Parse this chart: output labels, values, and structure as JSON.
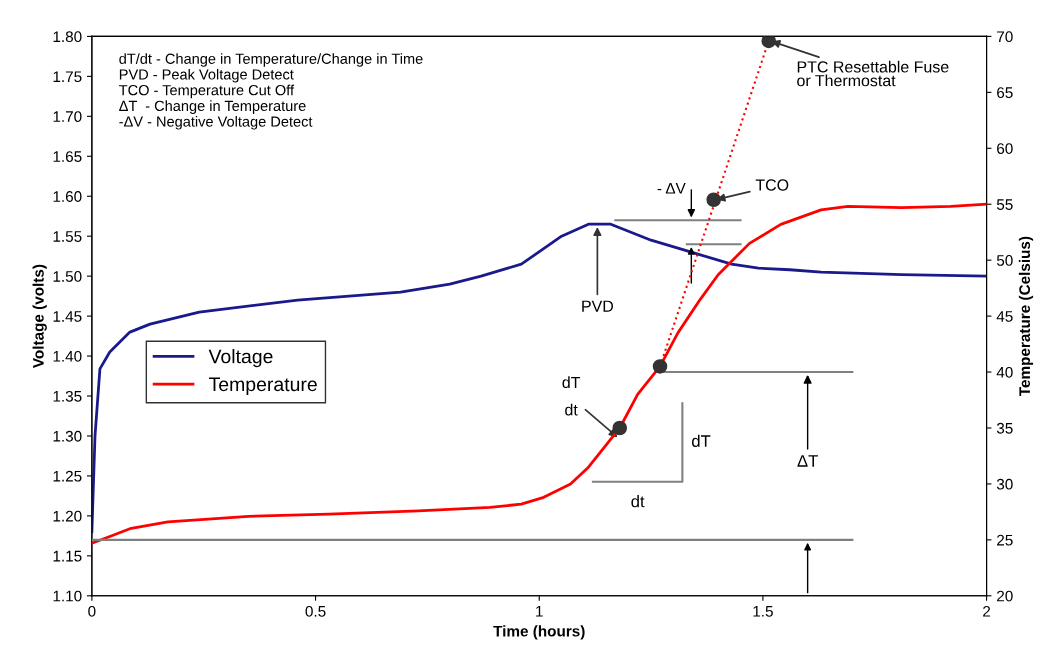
{
  "chart_data": {
    "type": "line",
    "xlabel": "Time (hours)",
    "ylabel": "Voltage (volts)",
    "y2label": "Temperature (Celsius)",
    "xlim": [
      0,
      2
    ],
    "xticks": [
      0,
      0.5,
      1,
      1.5,
      2
    ],
    "ylim": [
      1.1,
      1.8
    ],
    "yticks": [
      {
        "value": 1.1,
        "label": "1.10"
      },
      {
        "value": 1.15,
        "label": "1.15"
      },
      {
        "value": 1.2,
        "label": "1.20"
      },
      {
        "value": 1.25,
        "label": "1.25"
      },
      {
        "value": 1.3,
        "label": "1.30"
      },
      {
        "value": 1.35,
        "label": "1.35"
      },
      {
        "value": 1.4,
        "label": "1.40"
      },
      {
        "value": 1.45,
        "label": "1.45"
      },
      {
        "value": 1.5,
        "label": "1.50"
      },
      {
        "value": 1.55,
        "label": "1.55"
      },
      {
        "value": 1.6,
        "label": "1.60"
      },
      {
        "value": 1.65,
        "label": "1.65"
      },
      {
        "value": 1.7,
        "label": "1.70"
      },
      {
        "value": 1.75,
        "label": "1.75"
      },
      {
        "value": 1.8,
        "label": "1.80"
      }
    ],
    "y2lim": [
      20,
      70
    ],
    "y2ticks": [
      20,
      25,
      30,
      35,
      40,
      45,
      50,
      55,
      60,
      65,
      70
    ],
    "grid": false,
    "legend": "left",
    "marker": "none",
    "series": [
      {
        "name": "Voltage",
        "color": "#1a1a8c",
        "x": [
          0,
          0.007,
          0.018,
          0.04,
          0.085,
          0.13,
          0.24,
          0.46,
          0.69,
          0.8,
          0.87,
          0.96,
          1.05,
          1.11,
          1.16,
          1.25,
          1.34,
          1.43,
          1.49,
          1.56,
          1.63,
          1.81,
          2.0
        ],
        "values": [
          1.18,
          1.3,
          1.384,
          1.405,
          1.43,
          1.44,
          1.455,
          1.47,
          1.48,
          1.49,
          1.5,
          1.515,
          1.55,
          1.565,
          1.565,
          1.545,
          1.53,
          1.515,
          1.51,
          1.508,
          1.505,
          1.502,
          1.5
        ]
      },
      {
        "name": "Temperature",
        "color": "#ff0000",
        "axis": "y2",
        "x": [
          0,
          0.04,
          0.085,
          0.17,
          0.35,
          0.53,
          0.73,
          0.89,
          0.96,
          1.01,
          1.07,
          1.11,
          1.14,
          1.18,
          1.22,
          1.27,
          1.31,
          1.36,
          1.4,
          1.47,
          1.54,
          1.63,
          1.69,
          1.81,
          1.92,
          2.0
        ],
        "values": [
          24.7,
          25.3,
          26,
          26.6,
          27.1,
          27.3,
          27.6,
          27.9,
          28.2,
          28.8,
          30,
          31.5,
          33,
          35,
          38,
          40.5,
          43.5,
          46.5,
          48.7,
          51.5,
          53.2,
          54.5,
          54.8,
          54.7,
          54.8,
          55
        ]
      },
      {
        "color": "#ff0000",
        "axis": "y2",
        "line_style": "dotted",
        "x": [
          1.27,
          1.513
        ],
        "values": [
          40.5,
          69.6
        ]
      },
      {
        "color": "#808080",
        "axis": "y2",
        "x": [
          0,
          1.7
        ],
        "values": [
          25,
          25
        ]
      },
      {
        "color": "#808080",
        "axis": "y2",
        "x": [
          1.27,
          1.7
        ],
        "values": [
          40,
          40
        ]
      },
      {
        "color": "#808080",
        "x": [
          1.17,
          1.45
        ],
        "values": [
          1.57,
          1.57
        ]
      },
      {
        "color": "#808080",
        "x": [
          1.33,
          1.45
        ],
        "values": [
          1.54,
          1.54
        ]
      },
      {
        "color": "#808080",
        "axis": "y2",
        "x": [
          1.12,
          1.32,
          1.32
        ],
        "values": [
          30.2,
          30.2,
          37.2
        ]
      },
      {
        "type": "scatter",
        "color": "#333333",
        "axis": "y2",
        "marker": "circle",
        "x": [
          1.18,
          1.27,
          1.39,
          1.513
        ],
        "values": [
          35,
          40.5,
          55.4,
          69.6
        ]
      }
    ],
    "annotations": [
      "dT/dt - Change in Temperature/Change in Time",
      "PVD - Peak Voltage Detect",
      "TCO - Temperature Cut Off",
      "ΔT  - Change in Temperature",
      "-ΔV - Negative Voltage Detect",
      {
        "text": "PTC Resettable Fuse\nor Thermostat",
        "x": 1.513,
        "y": 1.795
      },
      {
        "text": "TCO",
        "x": 1.39,
        "y": 1.595
      },
      {
        "text": "PVD",
        "x": 1.13,
        "y": 1.565
      },
      {
        "text": "- ΔV",
        "x": 1.34,
        "y": 1.57
      },
      {
        "text": "dT\n\ndt",
        "x": 1.18,
        "y": 1.296
      },
      "dT",
      "dt",
      {
        "text": "ΔT",
        "x": 1.6,
        "y": 1.38
      }
    ]
  }
}
